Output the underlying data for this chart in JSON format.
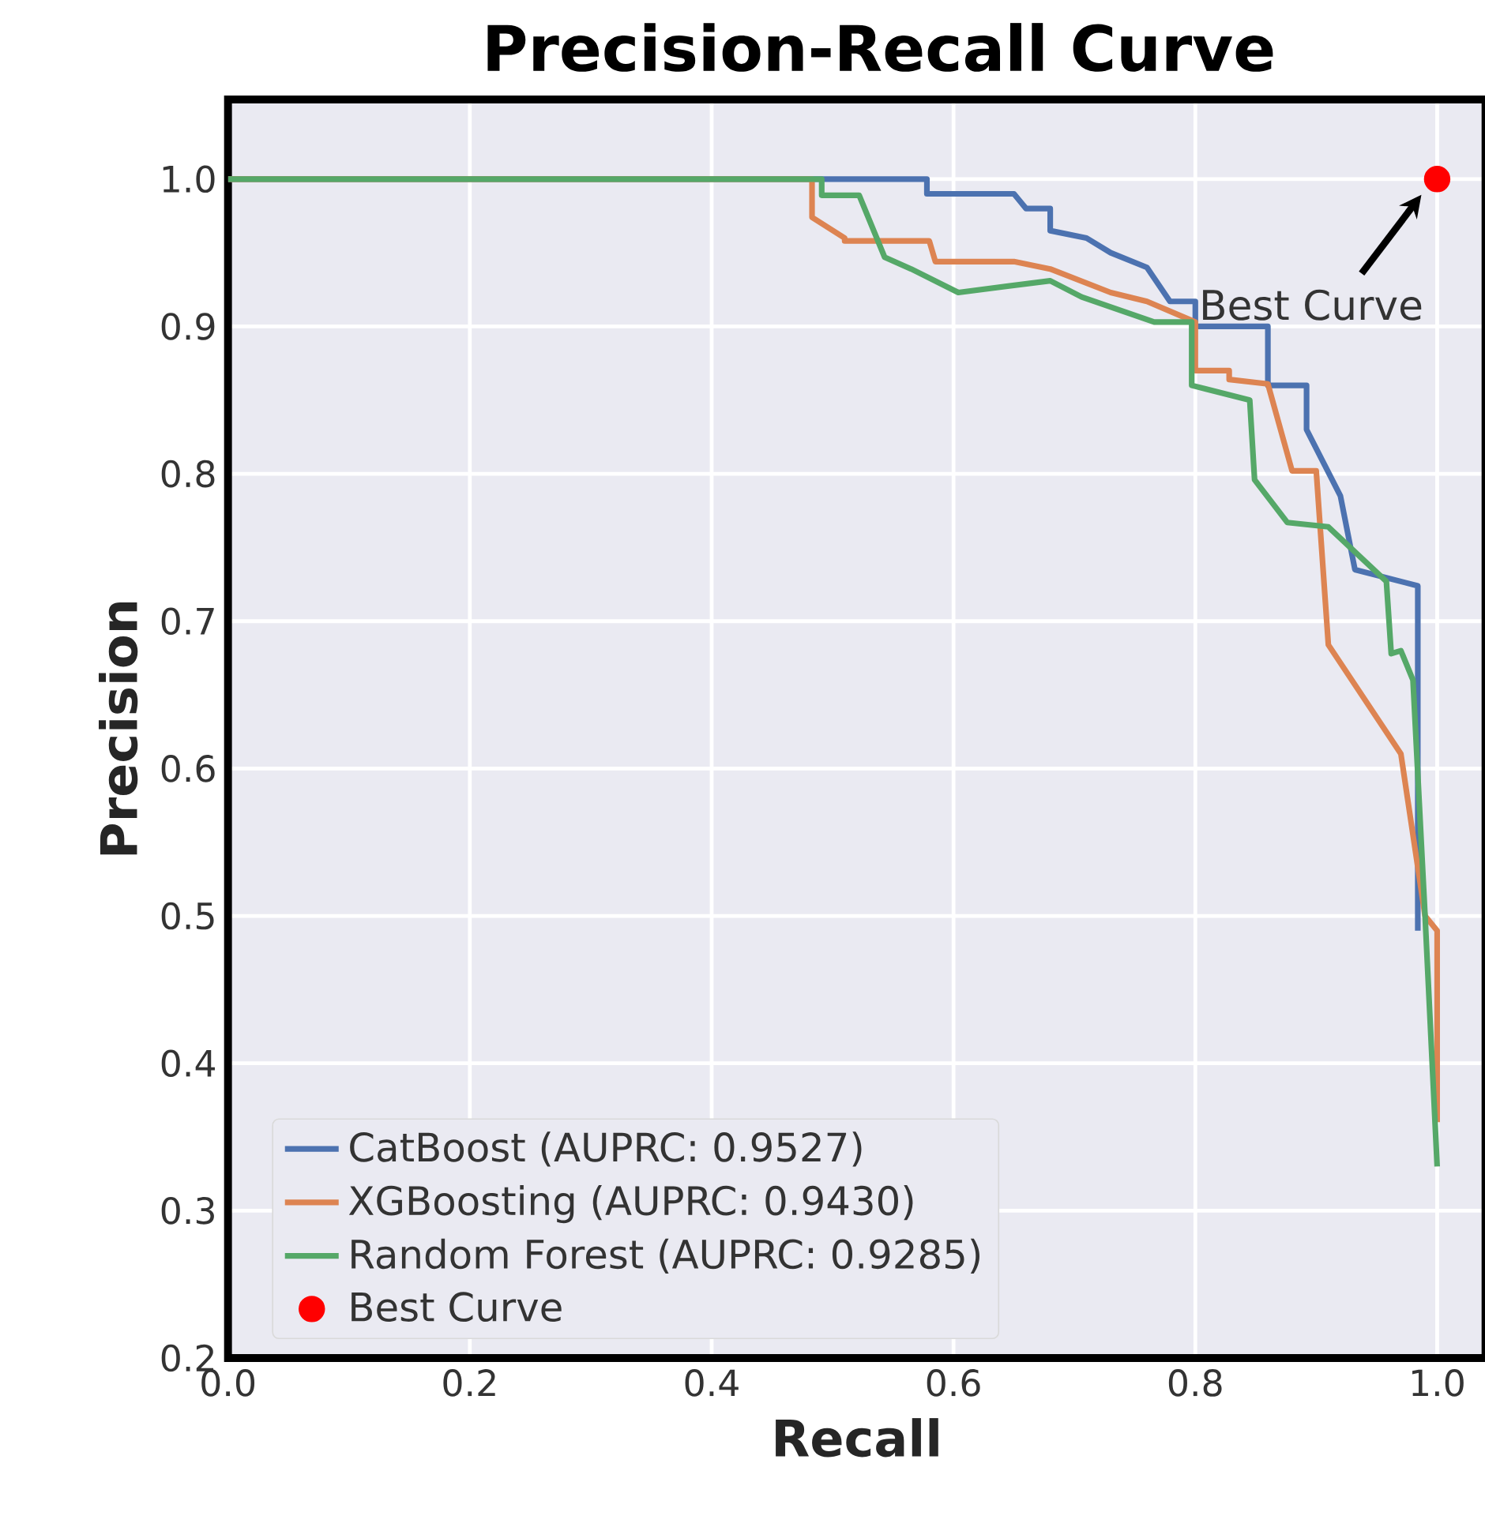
{
  "chart_data": {
    "type": "line",
    "title": "Precision-Recall Curve",
    "xlabel": "Recall",
    "ylabel": "Precision",
    "xlim": [
      0,
      1.04
    ],
    "ylim": [
      0.2,
      1.054
    ],
    "xticks": [
      {
        "value": 0,
        "label": "0.0"
      },
      0.2,
      0.4,
      0.6,
      0.8,
      {
        "value": 1,
        "label": "1.0"
      }
    ],
    "yticks": [
      0.2,
      0.3,
      0.4,
      0.5,
      0.6,
      0.7,
      0.8,
      0.9,
      {
        "value": 1,
        "label": "1.0"
      }
    ],
    "grid": true,
    "legend": "bottom left",
    "marker": "none",
    "line_style": "solid",
    "series": [
      {
        "name": "CatBoost (AUPRC: 0.9527)",
        "color": "#4c72b0",
        "x": [
          0,
          0.578,
          0.578,
          0.65,
          0.66,
          0.68,
          0.68,
          0.71,
          0.73,
          0.76,
          0.779,
          0.8,
          0.8,
          0.81,
          0.86,
          0.86,
          0.892,
          0.892,
          0.92,
          0.932,
          0.984,
          0.984
        ],
        "values": [
          1,
          1,
          0.99,
          0.99,
          0.98,
          0.98,
          0.965,
          0.96,
          0.95,
          0.94,
          0.917,
          0.917,
          0.9,
          0.9,
          0.9,
          0.86,
          0.86,
          0.83,
          0.785,
          0.735,
          0.724,
          0.49
        ]
      },
      {
        "name": "XGBoosting (AUPRC: 0.9430)",
        "color": "#dd8452",
        "x": [
          0,
          0.483,
          0.483,
          0.51,
          0.51,
          0.58,
          0.585,
          0.65,
          0.68,
          0.73,
          0.76,
          0.8,
          0.8,
          0.828,
          0.828,
          0.86,
          0.88,
          0.9,
          0.91,
          0.97,
          0.99,
          1.0,
          1.0
        ],
        "values": [
          1,
          1,
          0.974,
          0.96,
          0.958,
          0.958,
          0.944,
          0.944,
          0.939,
          0.923,
          0.917,
          0.903,
          0.87,
          0.87,
          0.864,
          0.861,
          0.802,
          0.802,
          0.684,
          0.61,
          0.5,
          0.49,
          0.36
        ]
      },
      {
        "name": "Random Forest (AUPRC: 0.9285)",
        "color": "#55a868",
        "x": [
          0,
          0.491,
          0.491,
          0.522,
          0.543,
          0.565,
          0.604,
          0.68,
          0.706,
          0.766,
          0.797,
          0.797,
          0.845,
          0.849,
          0.876,
          0.91,
          0.958,
          0.962,
          0.97,
          0.98,
          0.99,
          1.0
        ],
        "values": [
          1,
          1,
          0.989,
          0.989,
          0.947,
          0.939,
          0.923,
          0.931,
          0.92,
          0.903,
          0.903,
          0.86,
          0.85,
          0.796,
          0.767,
          0.764,
          0.727,
          0.678,
          0.68,
          0.66,
          0.5,
          0.33
        ]
      },
      {
        "name": "Best Curve",
        "type": "scatter",
        "marker": "circle",
        "color": "#ff0000",
        "x": [
          1.0
        ],
        "values": [
          1.0
        ]
      }
    ],
    "annotations": [
      "Best Curve"
    ]
  }
}
